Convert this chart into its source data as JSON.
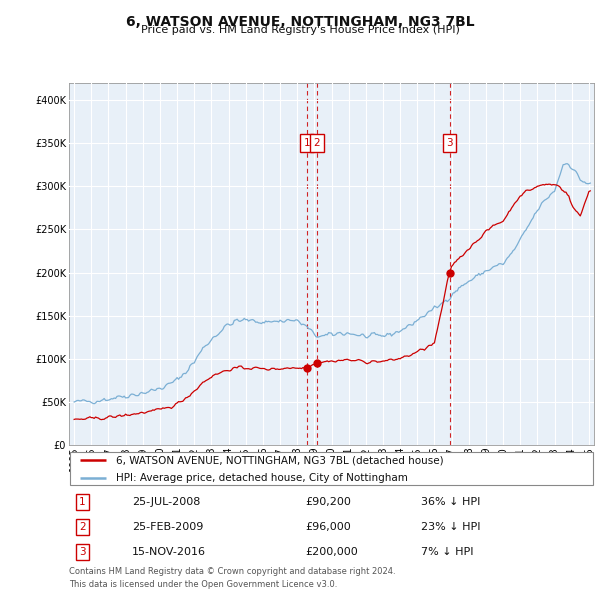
{
  "title": "6, WATSON AVENUE, NOTTINGHAM, NG3 7BL",
  "subtitle": "Price paid vs. HM Land Registry's House Price Index (HPI)",
  "legend_line1": "6, WATSON AVENUE, NOTTINGHAM, NG3 7BL (detached house)",
  "legend_line2": "HPI: Average price, detached house, City of Nottingham",
  "footer1": "Contains HM Land Registry data © Crown copyright and database right 2024.",
  "footer2": "This data is licensed under the Open Government Licence v3.0.",
  "sale_color": "#cc0000",
  "hpi_color": "#7bafd4",
  "bg_color": "#e8f0f8",
  "annotations": [
    {
      "n": "1",
      "date": "25-JUL-2008",
      "price": "£90,200",
      "hpi": "36% ↓ HPI",
      "x_year": 2008.56
    },
    {
      "n": "2",
      "date": "25-FEB-2009",
      "price": "£96,000",
      "hpi": "23% ↓ HPI",
      "x_year": 2009.15
    },
    {
      "n": "3",
      "date": "15-NOV-2016",
      "price": "£200,000",
      "hpi": "7% ↓ HPI",
      "x_year": 2016.88
    }
  ],
  "sale_points": [
    [
      2008.56,
      90200
    ],
    [
      2009.15,
      96000
    ],
    [
      2016.88,
      200000
    ]
  ],
  "ylim": [
    0,
    420000
  ],
  "xlim": [
    1994.7,
    2025.3
  ],
  "yticks": [
    0,
    50000,
    100000,
    150000,
    200000,
    250000,
    300000,
    350000,
    400000
  ]
}
